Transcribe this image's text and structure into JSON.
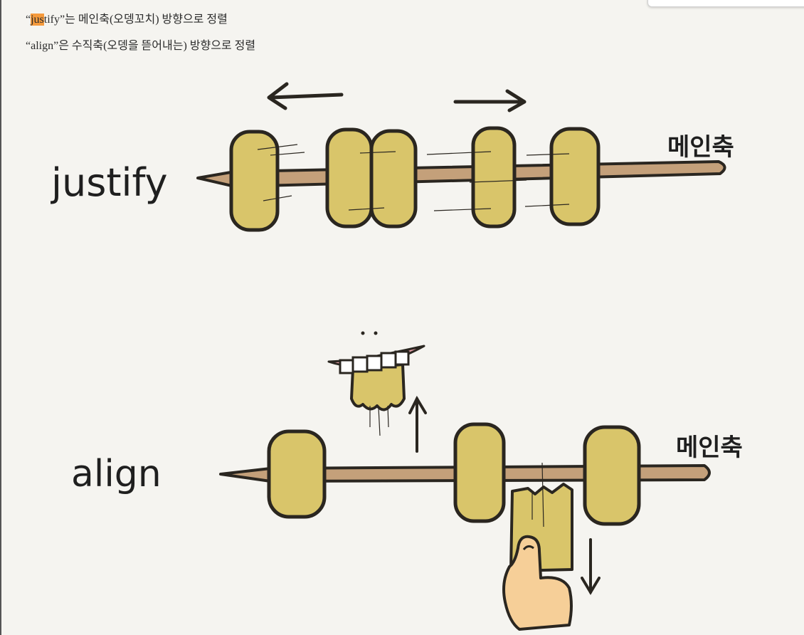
{
  "captions": {
    "justify_open_quote": "“",
    "justify_highlight": "jus",
    "justify_rest": "tify”는 메인축(오뎅꼬치) 방향으로 정렬",
    "align_line": "“align”은 수직축(오뎅을 뜯어내는) 방향으로 정렬"
  },
  "diagram": {
    "justify_label": "justify",
    "align_label": "align",
    "main_axis_label_top": "메인축",
    "main_axis_label_bottom": "메인축"
  },
  "colors": {
    "background": "#f5f4f0",
    "highlight": "#f59a3c",
    "odeng_fill": "#d9c56a",
    "skewer": "#c4a07a",
    "outline": "#2a2620",
    "finger": "#f6cf98"
  }
}
